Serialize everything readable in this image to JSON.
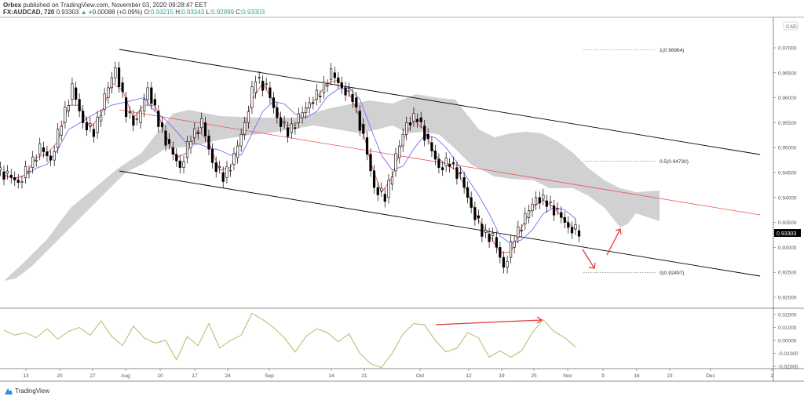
{
  "header": {
    "publisher": "Orbex",
    "published_text": "published on TradingView.com, November 03, 2020 09:28:47 EET",
    "symbol": "FX:AUDCAD, 720",
    "last": "0.93303",
    "change": "+0.00088 (+0.09%)",
    "o_label": "O:",
    "o": "0.93215",
    "h_label": "H:",
    "h": "0.93343",
    "l_label": "L:",
    "l": "0.92999",
    "c_label": "C:",
    "c": "0.93303"
  },
  "currency_badge": "CAD",
  "price_axis": [
    "0.97000",
    "0.96500",
    "0.96000",
    "0.95500",
    "0.95000",
    "0.94500",
    "0.94000",
    "0.93500",
    "0.93000",
    "0.92500",
    "0.92000"
  ],
  "current_price_label": "0.93303",
  "osc_axis": [
    "0.02000",
    "0.01000",
    "0.00000",
    "-0.01000",
    "-0.02000"
  ],
  "time_axis": [
    "13",
    "20",
    "27",
    "Aug",
    "10",
    "17",
    "24",
    "Sep",
    "14",
    "21",
    "Oct",
    "12",
    "19",
    "25",
    "Nov",
    "9",
    "16",
    "23",
    "Dec",
    "1"
  ],
  "fib_levels": [
    {
      "label": "1(0.96964)",
      "price": 0.96964
    },
    {
      "label": "0.5(0.94730)",
      "price": 0.9473
    },
    {
      "label": "0(0.92497)",
      "price": 0.92497
    }
  ],
  "colors": {
    "up": "#ffffff",
    "down": "#000000",
    "tenkan": "#ef5350",
    "kijun": "#7b6cf0",
    "cloud": "#c8c8cc",
    "osc": "#b5b86a",
    "arrow": "#e53935",
    "channel": "#000000",
    "midline": "#ef5350"
  },
  "chart_data": {
    "type": "candlestick",
    "symbol": "FX:AUDCAD",
    "interval": "720",
    "closes": [
      0.9445,
      0.943,
      0.946,
      0.95,
      0.9475,
      0.955,
      0.962,
      0.955,
      0.953,
      0.96,
      0.966,
      0.957,
      0.955,
      0.962,
      0.955,
      0.95,
      0.946,
      0.952,
      0.955,
      0.947,
      0.944,
      0.948,
      0.955,
      0.964,
      0.962,
      0.956,
      0.953,
      0.956,
      0.959,
      0.961,
      0.965,
      0.962,
      0.96,
      0.952,
      0.942,
      0.94,
      0.948,
      0.955,
      0.956,
      0.951,
      0.946,
      0.947,
      0.944,
      0.938,
      0.933,
      0.932,
      0.926,
      0.932,
      0.936,
      0.94,
      0.939,
      0.937,
      0.934,
      0.93303
    ],
    "oscillator": [
      0.008,
      0.004,
      0.006,
      0.002,
      0.009,
      0.001,
      0.007,
      0.01,
      0.004,
      0.015,
      0.003,
      -0.004,
      0.011,
      0.002,
      -0.002,
      0.0,
      -0.015,
      0.003,
      -0.004,
      0.013,
      -0.006,
      0.0,
      0.004,
      0.021,
      0.016,
      0.01,
      0.002,
      -0.009,
      0.003,
      0.009,
      0.006,
      -0.001,
      0.005,
      -0.01,
      -0.018,
      -0.021,
      -0.01,
      0.005,
      0.013,
      0.012,
      0.0,
      -0.009,
      -0.006,
      0.006,
      0.002,
      -0.013,
      -0.008,
      -0.013,
      -0.008,
      0.006,
      0.016,
      0.007,
      0.002,
      -0.005
    ],
    "price_range": [
      0.9175,
      0.9775
    ],
    "osc_range": [
      -0.024,
      0.024
    ]
  }
}
